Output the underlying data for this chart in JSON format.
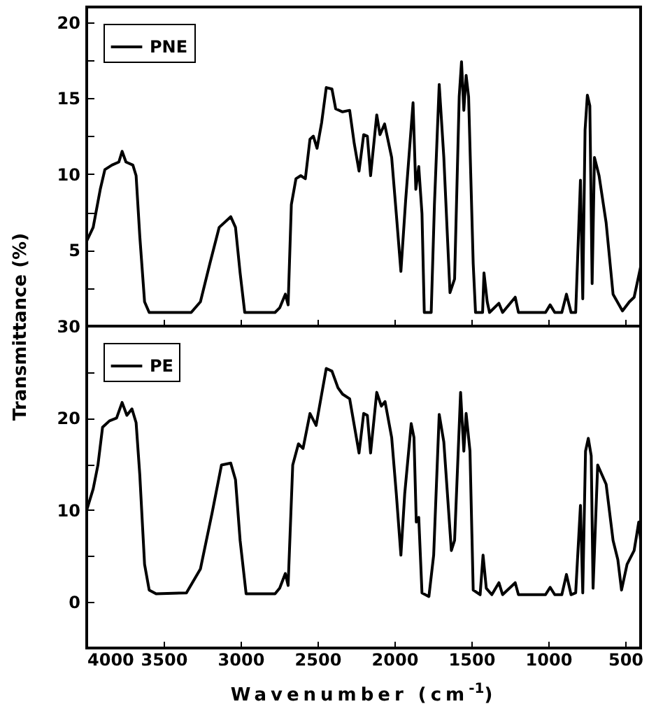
{
  "chart_data": [
    {
      "type": "line",
      "xlim": [
        4000,
        400
      ],
      "ylim": [
        0,
        21
      ],
      "xticks": [
        4000,
        3500,
        3000,
        2500,
        2000,
        1500,
        1000,
        500
      ],
      "yticks": [
        {
          "value": 2.5,
          "label": null
        },
        5,
        {
          "value": 7.5,
          "label": null
        },
        10,
        {
          "value": 12.5,
          "label": null
        },
        15,
        {
          "value": 17.5,
          "label": null
        },
        20
      ],
      "tick_labels": "y",
      "legend": "top left",
      "grid": false,
      "x": [
        4000,
        3958,
        3912,
        3882,
        3836,
        3791,
        3770,
        3745,
        3700,
        3679,
        3655,
        3624,
        3594,
        3321,
        3261,
        3200,
        3139,
        3064,
        3033,
        3003,
        2973,
        2776,
        2746,
        2709,
        2691,
        2670,
        2640,
        2609,
        2579,
        2549,
        2527,
        2503,
        2473,
        2443,
        2406,
        2382,
        2337,
        2291,
        2261,
        2230,
        2200,
        2176,
        2155,
        2115,
        2094,
        2064,
        2018,
        1988,
        1958,
        1927,
        1879,
        1861,
        1842,
        1821,
        1806,
        1761,
        1740,
        1709,
        1679,
        1639,
        1609,
        1579,
        1564,
        1549,
        1534,
        1518,
        1488,
        1473,
        1427,
        1418,
        1397,
        1382,
        1321,
        1297,
        1215,
        1194,
        1018,
        988,
        958,
        912,
        882,
        852,
        822,
        791,
        776,
        761,
        746,
        730,
        715,
        700,
        670,
        624,
        579,
        518,
        473,
        442,
        400
      ],
      "series": [
        {
          "name": "PNE",
          "color": "#000000",
          "values": [
            5.6,
            6.5,
            9.0,
            10.3,
            10.6,
            10.8,
            11.5,
            10.8,
            10.6,
            9.9,
            5.9,
            1.6,
            0.9,
            0.9,
            1.6,
            4.1,
            6.5,
            7.2,
            6.5,
            3.5,
            0.9,
            0.9,
            1.2,
            2.1,
            1.4,
            8.0,
            9.7,
            9.9,
            9.7,
            12.3,
            12.5,
            11.7,
            13.4,
            15.7,
            15.6,
            14.3,
            14.1,
            14.2,
            12.0,
            10.2,
            12.6,
            12.5,
            9.9,
            13.9,
            12.6,
            13.3,
            11.1,
            7.4,
            3.6,
            8.3,
            14.7,
            9.0,
            10.5,
            7.4,
            0.9,
            0.9,
            8.0,
            15.9,
            11.1,
            2.2,
            3.1,
            15.1,
            17.4,
            14.2,
            16.5,
            15.1,
            4.1,
            0.9,
            0.9,
            3.5,
            1.6,
            0.9,
            1.5,
            0.9,
            1.9,
            0.9,
            0.9,
            1.4,
            0.9,
            0.9,
            2.1,
            0.9,
            0.9,
            9.6,
            1.8,
            12.9,
            15.2,
            14.5,
            2.8,
            11.1,
            9.9,
            6.8,
            2.1,
            1.0,
            1.6,
            1.9,
            3.9
          ]
        }
      ]
    },
    {
      "type": "line",
      "xlim": [
        4000,
        400
      ],
      "ylim": [
        -5,
        30
      ],
      "xticks": [
        4000,
        3500,
        3000,
        2500,
        2000,
        1500,
        1000,
        500
      ],
      "yticks": [
        {
          "value": -5,
          "label": null
        },
        0,
        {
          "value": 5,
          "label": null
        },
        10,
        {
          "value": 15,
          "label": null
        },
        20,
        {
          "value": 25,
          "label": null
        },
        30
      ],
      "legend": "top left",
      "grid": false,
      "xlabel": "Wavenumber (cm$^{-1}$)",
      "ylabel": "Transmittance (%)",
      "x": [
        4000,
        3958,
        3927,
        3897,
        3852,
        3806,
        3770,
        3739,
        3706,
        3679,
        3655,
        3624,
        3594,
        3549,
        3352,
        3261,
        3185,
        3124,
        3064,
        3033,
        3003,
        2964,
        2776,
        2746,
        2709,
        2691,
        2661,
        2624,
        2594,
        2549,
        2509,
        2473,
        2443,
        2406,
        2367,
        2337,
        2291,
        2230,
        2200,
        2176,
        2155,
        2115,
        2085,
        2061,
        2018,
        1988,
        1958,
        1933,
        1891,
        1873,
        1858,
        1842,
        1821,
        1776,
        1745,
        1709,
        1679,
        1630,
        1609,
        1570,
        1549,
        1534,
        1509,
        1488,
        1443,
        1424,
        1403,
        1367,
        1321,
        1297,
        1215,
        1194,
        1018,
        988,
        958,
        912,
        882,
        852,
        822,
        791,
        776,
        758,
        740,
        721,
        709,
        679,
        624,
        579,
        548,
        524,
        488,
        442,
        412,
        400
      ],
      "series": [
        {
          "name": "PE",
          "color": "#000000",
          "values": [
            10.0,
            12.3,
            14.9,
            19.0,
            19.7,
            20.0,
            21.7,
            20.3,
            21.0,
            19.5,
            13.8,
            4.1,
            1.3,
            0.9,
            1.0,
            3.6,
            9.7,
            14.9,
            15.1,
            13.3,
            6.7,
            0.9,
            0.9,
            1.5,
            3.1,
            1.8,
            14.9,
            17.2,
            16.7,
            20.5,
            19.2,
            22.6,
            25.4,
            25.1,
            23.3,
            22.6,
            22.1,
            16.2,
            20.5,
            20.3,
            16.2,
            22.8,
            21.3,
            21.8,
            17.9,
            11.8,
            5.1,
            11.8,
            19.4,
            17.9,
            8.7,
            9.2,
            1.0,
            0.6,
            5.1,
            20.4,
            17.4,
            5.6,
            6.7,
            22.8,
            16.4,
            20.5,
            16.4,
            1.3,
            0.8,
            5.1,
            1.5,
            0.8,
            2.1,
            0.8,
            2.1,
            0.8,
            0.8,
            1.6,
            0.8,
            0.8,
            3.0,
            0.8,
            1.0,
            10.5,
            1.0,
            16.4,
            17.8,
            15.9,
            1.5,
            14.9,
            12.8,
            6.7,
            4.6,
            1.3,
            4.1,
            5.6,
            8.7,
            6.7
          ]
        }
      ]
    }
  ]
}
